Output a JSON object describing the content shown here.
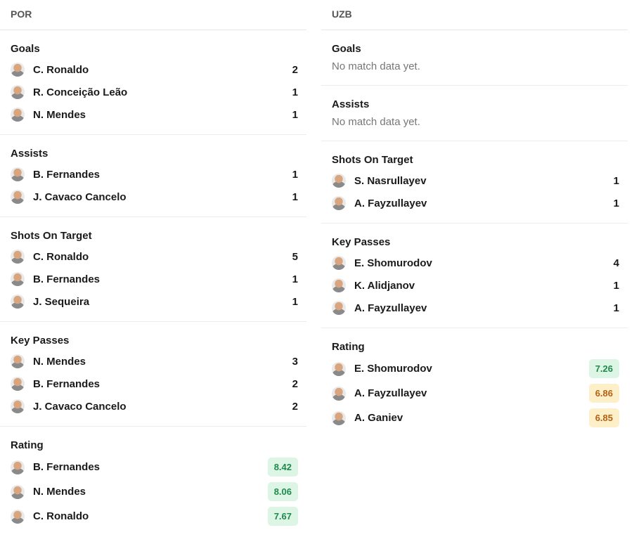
{
  "teams": [
    {
      "name": "POR",
      "sections": [
        {
          "title": "Goals",
          "players": [
            {
              "name": "C. Ronaldo",
              "value": 2
            },
            {
              "name": "R. Conceição Leão",
              "value": 1
            },
            {
              "name": "N. Mendes",
              "value": 1
            }
          ]
        },
        {
          "title": "Assists",
          "players": [
            {
              "name": "B. Fernandes",
              "value": 1
            },
            {
              "name": "J. Cavaco Cancelo",
              "value": 1
            }
          ]
        },
        {
          "title": "Shots On Target",
          "players": [
            {
              "name": "C. Ronaldo",
              "value": 5
            },
            {
              "name": "B. Fernandes",
              "value": 1
            },
            {
              "name": "J. Sequeira",
              "value": 1
            }
          ]
        },
        {
          "title": "Key Passes",
          "players": [
            {
              "name": "N. Mendes",
              "value": 3
            },
            {
              "name": "B. Fernandes",
              "value": 2
            },
            {
              "name": "J. Cavaco Cancelo",
              "value": 2
            }
          ]
        },
        {
          "title": "Rating",
          "badge": true,
          "players": [
            {
              "name": "B. Fernandes",
              "value": 8.42,
              "color": "green"
            },
            {
              "name": "N. Mendes",
              "value": 8.06,
              "color": "green"
            },
            {
              "name": "C. Ronaldo",
              "value": 7.67,
              "color": "green"
            }
          ]
        }
      ]
    },
    {
      "name": "UZB",
      "sections": [
        {
          "title": "Goals",
          "empty": "No match data yet."
        },
        {
          "title": "Assists",
          "empty": "No match data yet."
        },
        {
          "title": "Shots On Target",
          "players": [
            {
              "name": "S. Nasrullayev",
              "value": 1
            },
            {
              "name": "A. Fayzullayev",
              "value": 1
            }
          ]
        },
        {
          "title": "Key Passes",
          "players": [
            {
              "name": "E. Shomurodov",
              "value": 4
            },
            {
              "name": "K. Alidjanov",
              "value": 1
            },
            {
              "name": "A. Fayzullayev",
              "value": 1
            }
          ]
        },
        {
          "title": "Rating",
          "badge": true,
          "players": [
            {
              "name": "E. Shomurodov",
              "value": 7.26,
              "color": "green"
            },
            {
              "name": "A. Fayzullayev",
              "value": 6.86,
              "color": "orange"
            },
            {
              "name": "A. Ganiev",
              "value": 6.85,
              "color": "orange"
            }
          ]
        }
      ]
    }
  ]
}
